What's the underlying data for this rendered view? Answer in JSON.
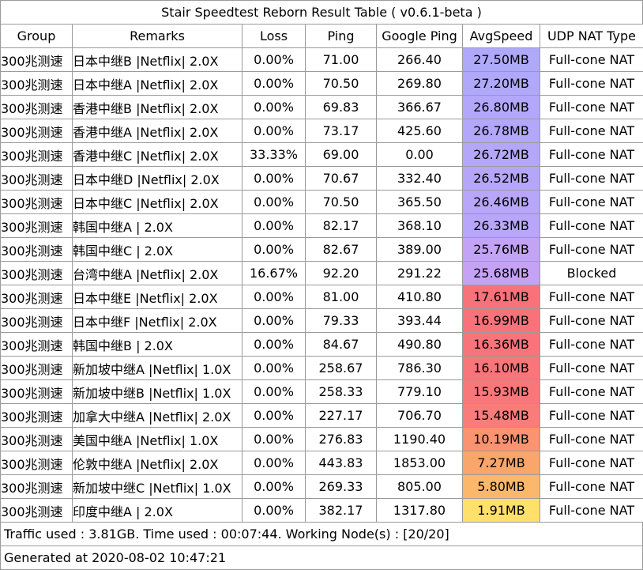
{
  "title": "Stair Speedtest Reborn Result Table ( v0.6.1-beta )",
  "columns": [
    "Group",
    "Remarks",
    "Loss",
    "Ping",
    "Google Ping",
    "AvgSpeed",
    "UDP NAT Type"
  ],
  "rows": [
    {
      "group": "300兆测速",
      "remarks": "日本中继B |Netflix| 2.0X",
      "loss": "0.00%",
      "ping": "71.00",
      "google_ping": "266.40",
      "avg_speed": "27.50MB",
      "speed_color": "#aea9fa",
      "nat": "Full-cone NAT"
    },
    {
      "group": "300兆测速",
      "remarks": "日本中继A |Netflix| 2.0X",
      "loss": "0.00%",
      "ping": "70.50",
      "google_ping": "269.80",
      "avg_speed": "27.20MB",
      "speed_color": "#b0a8fa",
      "nat": "Full-cone NAT"
    },
    {
      "group": "300兆测速",
      "remarks": "香港中继B |Netflix| 2.0X",
      "loss": "0.00%",
      "ping": "69.83",
      "google_ping": "366.67",
      "avg_speed": "26.80MB",
      "speed_color": "#b2a7fb",
      "nat": "Full-cone NAT"
    },
    {
      "group": "300兆测速",
      "remarks": "香港中继A |Netflix| 2.0X",
      "loss": "0.00%",
      "ping": "73.17",
      "google_ping": "425.60",
      "avg_speed": "26.78MB",
      "speed_color": "#b3a7fb",
      "nat": "Full-cone NAT"
    },
    {
      "group": "300兆测速",
      "remarks": "香港中继C |Netflix| 2.0X",
      "loss": "33.33%",
      "ping": "69.00",
      "google_ping": "0.00",
      "avg_speed": "26.72MB",
      "speed_color": "#b4a7fa",
      "nat": "Full-cone NAT"
    },
    {
      "group": "300兆测速",
      "remarks": "日本中继D |Netflix| 2.0X",
      "loss": "0.00%",
      "ping": "70.67",
      "google_ping": "332.40",
      "avg_speed": "26.52MB",
      "speed_color": "#b6a6fa",
      "nat": "Full-cone NAT"
    },
    {
      "group": "300兆测速",
      "remarks": "日本中继C |Netflix| 2.0X",
      "loss": "0.00%",
      "ping": "70.50",
      "google_ping": "365.50",
      "avg_speed": "26.46MB",
      "speed_color": "#b7a6fa",
      "nat": "Full-cone NAT"
    },
    {
      "group": "300兆测速",
      "remarks": "韩国中继A | 2.0X",
      "loss": "0.00%",
      "ping": "82.17",
      "google_ping": "368.10",
      "avg_speed": "26.33MB",
      "speed_color": "#b8a6fa",
      "nat": "Full-cone NAT"
    },
    {
      "group": "300兆测速",
      "remarks": "韩国中继C | 2.0X",
      "loss": "0.00%",
      "ping": "82.67",
      "google_ping": "389.00",
      "avg_speed": "25.76MB",
      "speed_color": "#c2a3f6",
      "nat": "Full-cone NAT"
    },
    {
      "group": "300兆测速",
      "remarks": "台湾中继A |Netflix| 2.0X",
      "loss": "16.67%",
      "ping": "92.20",
      "google_ping": "291.22",
      "avg_speed": "25.68MB",
      "speed_color": "#c5a2f5",
      "nat": "Blocked"
    },
    {
      "group": "300兆测速",
      "remarks": "日本中继E |Netflix| 2.0X",
      "loss": "0.00%",
      "ping": "81.00",
      "google_ping": "410.80",
      "avg_speed": "17.61MB",
      "speed_color": "#f8727a",
      "nat": "Full-cone NAT"
    },
    {
      "group": "300兆测速",
      "remarks": "日本中继F |Netflix| 2.0X",
      "loss": "0.00%",
      "ping": "79.33",
      "google_ping": "393.44",
      "avg_speed": "16.99MB",
      "speed_color": "#f8727a",
      "nat": "Full-cone NAT"
    },
    {
      "group": "300兆测速",
      "remarks": "韩国中继B | 2.0X",
      "loss": "0.00%",
      "ping": "84.67",
      "google_ping": "490.80",
      "avg_speed": "16.36MB",
      "speed_color": "#f8747a",
      "nat": "Full-cone NAT"
    },
    {
      "group": "300兆测速",
      "remarks": "新加坡中继A |Netflix| 1.0X",
      "loss": "0.00%",
      "ping": "258.67",
      "google_ping": "786.30",
      "avg_speed": "16.10MB",
      "speed_color": "#f8767a",
      "nat": "Full-cone NAT"
    },
    {
      "group": "300兆测速",
      "remarks": "新加坡中继B |Netflix| 1.0X",
      "loss": "0.00%",
      "ping": "258.33",
      "google_ping": "779.10",
      "avg_speed": "15.93MB",
      "speed_color": "#f8787a",
      "nat": "Full-cone NAT"
    },
    {
      "group": "300兆测速",
      "remarks": "加拿大中继A |Netflix| 2.0X",
      "loss": "0.00%",
      "ping": "227.17",
      "google_ping": "706.70",
      "avg_speed": "15.48MB",
      "speed_color": "#f87c7a",
      "nat": "Full-cone NAT"
    },
    {
      "group": "300兆测速",
      "remarks": "美国中继A |Netflix| 1.0X",
      "loss": "0.00%",
      "ping": "276.83",
      "google_ping": "1190.40",
      "avg_speed": "10.19MB",
      "speed_color": "#f99370",
      "nat": "Full-cone NAT"
    },
    {
      "group": "300兆测速",
      "remarks": "伦敦中继A |Netflix| 2.0X",
      "loss": "0.00%",
      "ping": "443.83",
      "google_ping": "1853.00",
      "avg_speed": "7.27MB",
      "speed_color": "#faa66a",
      "nat": "Full-cone NAT"
    },
    {
      "group": "300兆测速",
      "remarks": "新加坡中继C |Netflix| 1.0X",
      "loss": "0.00%",
      "ping": "269.33",
      "google_ping": "805.00",
      "avg_speed": "5.80MB",
      "speed_color": "#fbb86a",
      "nat": "Full-cone NAT"
    },
    {
      "group": "300兆测速",
      "remarks": "印度中继A | 2.0X",
      "loss": "0.00%",
      "ping": "382.17",
      "google_ping": "1317.80",
      "avg_speed": "1.91MB",
      "speed_color": "#ffe06a",
      "nat": "Full-cone NAT"
    }
  ],
  "footer": {
    "summary": "Traffic used : 3.81GB. Time used : 00:07:44. Working Node(s) : [20/20]",
    "generated": "Generated at 2020-08-02 10:47:21"
  }
}
